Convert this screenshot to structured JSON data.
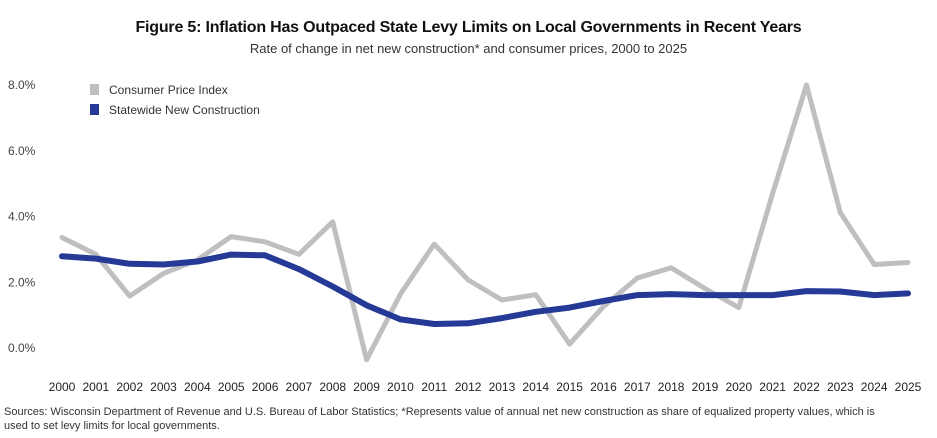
{
  "chart_data": {
    "type": "line",
    "title": "Figure 5: Inflation Has Outpaced State Levy Limits on Local Governments in Recent Years",
    "subtitle": "Rate of change in net new construction* and consumer prices, 2000 to 2025",
    "xlabel": "",
    "ylabel": "",
    "x": [
      "2000",
      "2001",
      "2002",
      "2003",
      "2004",
      "2005",
      "2006",
      "2007",
      "2008",
      "2009",
      "2010",
      "2011",
      "2012",
      "2013",
      "2014",
      "2015",
      "2016",
      "2017",
      "2018",
      "2019",
      "2020",
      "2021",
      "2022",
      "2023",
      "2024",
      "2025"
    ],
    "ylim": [
      0,
      8
    ],
    "yticks": [
      0,
      2,
      4,
      6,
      8
    ],
    "ytick_labels": [
      "0.0%",
      "2.0%",
      "4.0%",
      "6.0%",
      "8.0%"
    ],
    "grid": false,
    "legend_position": "top-left",
    "series": [
      {
        "name": "Consumer Price Index",
        "color": "#bfbfbf",
        "values": [
          3.36,
          2.85,
          1.58,
          2.27,
          2.68,
          3.39,
          3.23,
          2.85,
          3.84,
          -0.36,
          1.64,
          3.16,
          2.07,
          1.46,
          1.62,
          0.12,
          1.26,
          2.13,
          2.44,
          1.81,
          1.23,
          4.7,
          8.0,
          4.12,
          2.54,
          2.6
        ]
      },
      {
        "name": "Statewide New Construction",
        "color": "#253a96",
        "values": [
          2.79,
          2.72,
          2.56,
          2.54,
          2.63,
          2.84,
          2.82,
          2.4,
          1.87,
          1.3,
          0.87,
          0.73,
          0.75,
          0.91,
          1.1,
          1.23,
          1.43,
          1.61,
          1.64,
          1.61,
          1.61,
          1.61,
          1.73,
          1.72,
          1.61,
          1.66
        ]
      }
    ]
  },
  "footer": {
    "source_line1": "Sources: Wisconsin Department of Revenue and U.S. Bureau of Labor Statistics; *Represents value of annual net new construction as share of equalized property values, which is",
    "source_line2": "used to set levy limits for local governments."
  }
}
